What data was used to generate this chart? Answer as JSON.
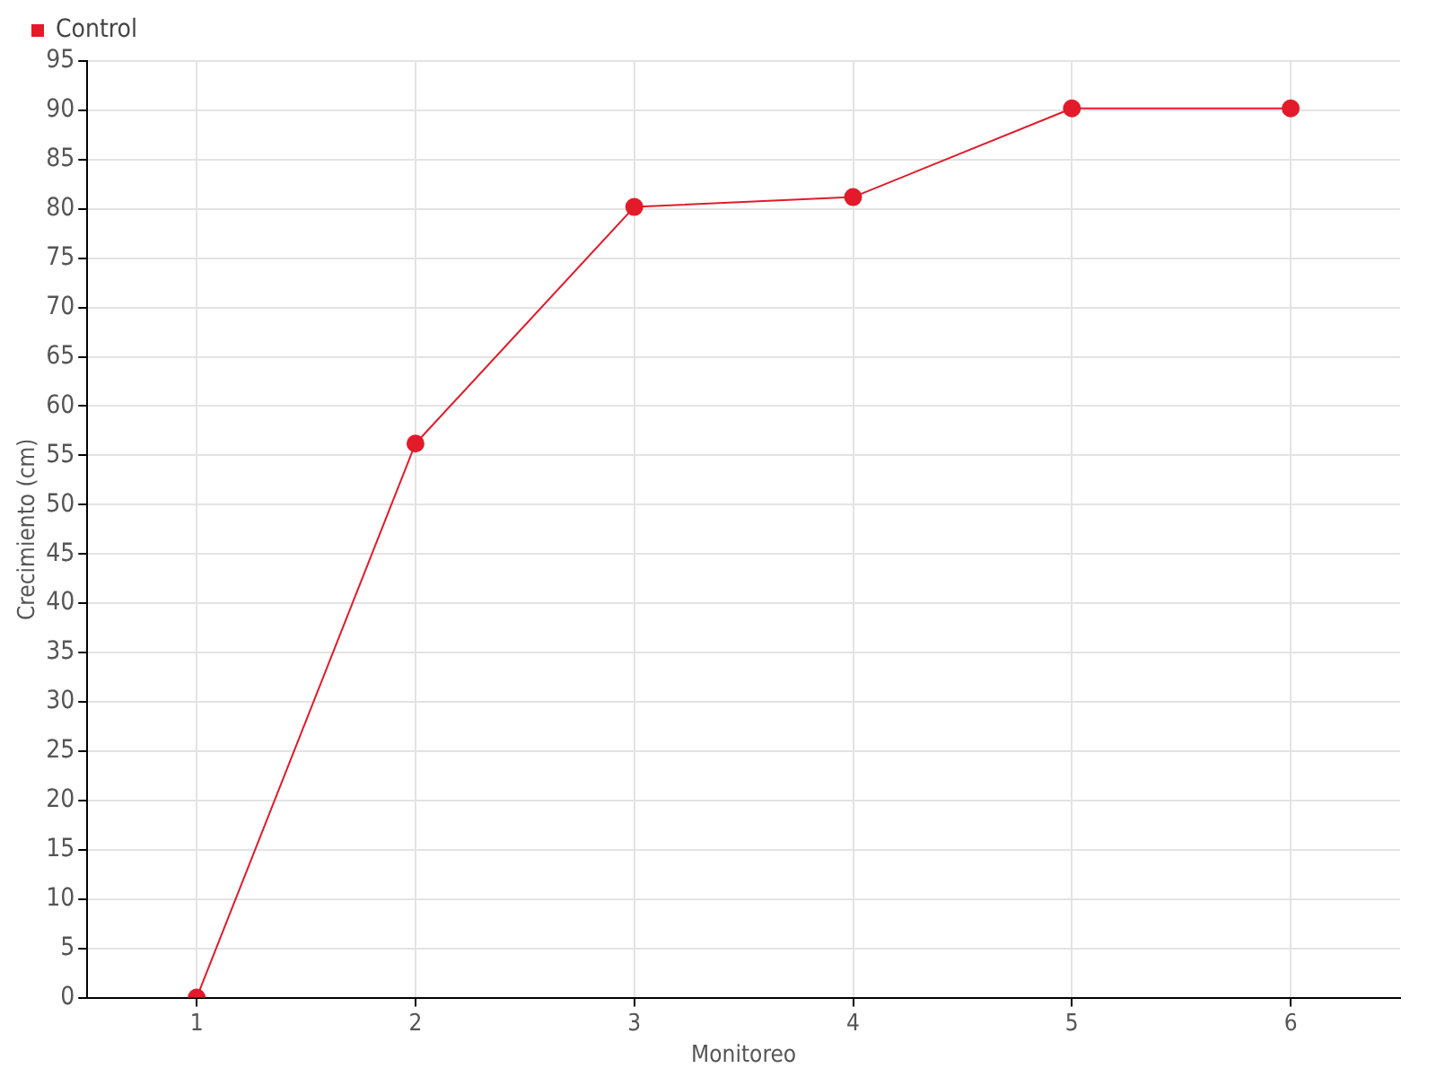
{
  "chart_data": {
    "type": "line",
    "xlabel": "Monitoreo",
    "ylabel": "Crecimiento (cm)",
    "x": [
      1,
      2,
      3,
      4,
      5,
      6
    ],
    "series": [
      {
        "name": "Control",
        "color": "#e31a2a",
        "values": [
          0,
          56.2,
          80.2,
          81.2,
          90.2,
          90.2
        ]
      }
    ],
    "xlim": [
      0.5,
      6.5
    ],
    "xticks": [
      1,
      2,
      3,
      4,
      5,
      6
    ],
    "ylim": [
      0,
      95
    ],
    "yticks": [
      0,
      5,
      10,
      15,
      20,
      25,
      30,
      35,
      40,
      45,
      50,
      55,
      60,
      65,
      70,
      75,
      80,
      85,
      90,
      95
    ],
    "grid": true,
    "legend": "top left",
    "marker": "circle",
    "line_style": "solid"
  }
}
